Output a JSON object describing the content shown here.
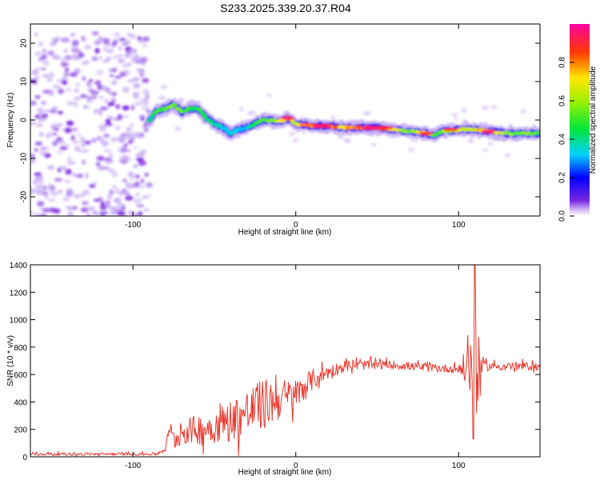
{
  "title": "S233.2025.339.20.37.R04",
  "chart_data": [
    {
      "type": "heatmap",
      "name": "spectrogram",
      "xlabel": "Height of straight line (km)",
      "ylabel": "Frequency (Hz)",
      "xlim": [
        -163,
        150
      ],
      "ylim": [
        -25,
        25
      ],
      "x_ticks": [
        -100,
        0,
        100
      ],
      "y_ticks": [
        -20,
        -10,
        0,
        10,
        20
      ],
      "colorbar": {
        "label": "Normalized spectral amplitude",
        "range": [
          0,
          1
        ],
        "ticks": [
          0.0,
          0.2,
          0.4,
          0.6,
          0.8
        ]
      },
      "noise_region": {
        "x_range": [
          -163,
          -90
        ],
        "y_range": [
          -25,
          23
        ]
      },
      "ridge": {
        "x": [
          -90,
          -85,
          -80,
          -75,
          -70,
          -65,
          -60,
          -55,
          -50,
          -45,
          -40,
          -35,
          -30,
          -25,
          -20,
          -15,
          -10,
          -5,
          0,
          10,
          20,
          30,
          40,
          50,
          60,
          70,
          80,
          85,
          90,
          100,
          110,
          120,
          130,
          140,
          150
        ],
        "freq": [
          0,
          2.5,
          3,
          4,
          2,
          3,
          3,
          0.5,
          -1,
          -2,
          -3.5,
          -2.5,
          -2,
          -1,
          0,
          0,
          -0.5,
          0.5,
          -1,
          -1.5,
          -1.5,
          -2,
          -2,
          -2,
          -2.5,
          -3,
          -3.5,
          -4,
          -3,
          -2.5,
          -2.5,
          -3,
          -3.5,
          -3.5,
          -3.5
        ],
        "amp": [
          0.4,
          0.5,
          0.55,
          0.6,
          0.6,
          0.5,
          0.5,
          0.45,
          0.4,
          0.35,
          0.35,
          0.35,
          0.35,
          0.45,
          0.55,
          0.6,
          0.7,
          0.9,
          0.7,
          0.9,
          0.95,
          0.75,
          0.9,
          0.95,
          0.75,
          0.6,
          0.8,
          0.5,
          0.6,
          0.75,
          0.7,
          0.85,
          0.6,
          0.6,
          0.55
        ]
      },
      "bright_spots": [
        {
          "x": -5,
          "freq": 0.5,
          "amp": 0.95
        },
        {
          "x": 15,
          "freq": -1.5,
          "amp": 0.95
        },
        {
          "x": 45,
          "freq": -2,
          "amp": 0.95
        },
        {
          "x": 55,
          "freq": -2,
          "amp": 0.9
        },
        {
          "x": 80,
          "freq": -3.5,
          "amp": 0.9
        },
        {
          "x": 95,
          "freq": -2.5,
          "amp": 0.85
        },
        {
          "x": 118,
          "freq": -3,
          "amp": 0.95
        }
      ]
    },
    {
      "type": "line",
      "name": "snr",
      "xlabel": "Height of straight line (km)",
      "ylabel": "SNR (10 * v/v)",
      "xlim": [
        -163,
        150
      ],
      "ylim": [
        0,
        1400
      ],
      "x_ticks": [
        -100,
        0,
        100
      ],
      "y_ticks": [
        0,
        200,
        400,
        600,
        800,
        1000,
        1200,
        1400
      ],
      "color": "#e8372c",
      "envelope": {
        "x": [
          -163,
          -100,
          -85,
          -80,
          -78,
          -75,
          -70,
          -60,
          -50,
          -40,
          -30,
          -20,
          -10,
          0,
          10,
          20,
          30,
          40,
          60,
          80,
          100,
          105,
          108,
          110,
          112,
          115,
          120,
          150
        ],
        "mean": [
          20,
          20,
          20,
          60,
          200,
          120,
          180,
          200,
          220,
          270,
          320,
          380,
          420,
          450,
          560,
          620,
          660,
          670,
          670,
          650,
          640,
          650,
          700,
          700,
          650,
          660,
          660,
          660
        ],
        "noise": [
          10,
          10,
          10,
          25,
          30,
          80,
          90,
          110,
          120,
          150,
          180,
          190,
          150,
          120,
          80,
          50,
          40,
          35,
          30,
          30,
          30,
          150,
          300,
          550,
          250,
          40,
          30,
          30
        ]
      },
      "peak": {
        "x": 110,
        "y": 1400
      },
      "trough": {
        "x": 109,
        "y": 130
      }
    }
  ]
}
